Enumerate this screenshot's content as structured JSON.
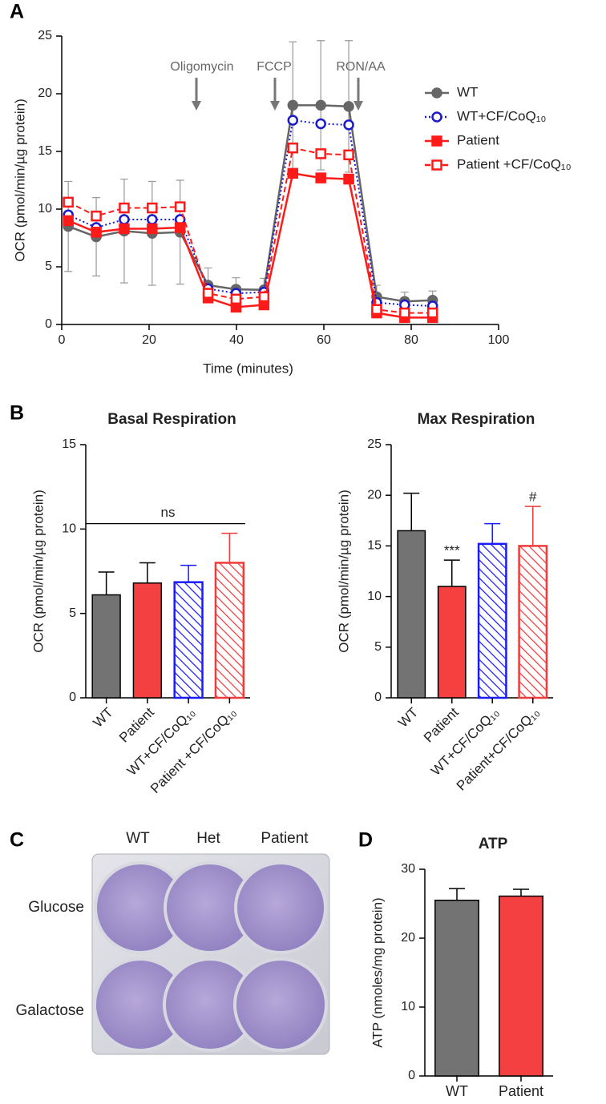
{
  "panel_labels": [
    "A",
    "B",
    "C",
    "D"
  ],
  "chart_data": [
    {
      "type": "line",
      "ylabel": "OCR (pmol/min/µg protein)",
      "xlabel": "Time (minutes)",
      "xlim": [
        0,
        100
      ],
      "xticks": [
        0,
        20,
        40,
        60,
        80,
        100
      ],
      "ylim": [
        0,
        25
      ],
      "yticks": [
        0,
        5,
        10,
        15,
        20,
        25
      ],
      "x": [
        1.5,
        7.9,
        14.3,
        20.7,
        27.1,
        33.5,
        39.9,
        46.3,
        52.9,
        59.3,
        65.7,
        72.1,
        78.5,
        84.9
      ],
      "annotations": [
        "Oligomycin",
        "FCCP",
        "RON/AA"
      ],
      "series": [
        {
          "name": "WT",
          "color": "#666666",
          "marker": "circle",
          "filled": true,
          "style": "solid",
          "values": [
            8.5,
            7.6,
            8.1,
            7.9,
            8.0,
            3.4,
            3.05,
            3.0,
            19.0,
            19.0,
            18.9,
            2.4,
            2.0,
            2.1
          ],
          "errors": [
            3.9,
            3.4,
            4.5,
            4.5,
            4.5,
            1.5,
            1.0,
            1.0,
            5.5,
            5.6,
            5.7,
            1.0,
            0.8,
            0.8
          ]
        },
        {
          "name": "WT+CF/CoQ₁₀",
          "color": "#1a1acc",
          "marker": "circle",
          "filled": false,
          "style": "dotted",
          "values": [
            9.5,
            8.4,
            9.1,
            9.1,
            9.1,
            3.1,
            2.7,
            2.8,
            17.7,
            17.4,
            17.3,
            1.9,
            1.7,
            1.6
          ]
        },
        {
          "name": "Patient",
          "color": "#ff1a1a",
          "marker": "square",
          "filled": true,
          "style": "solid",
          "values": [
            9.0,
            8.0,
            8.3,
            8.3,
            8.4,
            2.3,
            1.5,
            1.7,
            13.1,
            12.7,
            12.6,
            1.0,
            0.6,
            0.6
          ]
        },
        {
          "name": "Patient +CF/CoQ₁₀",
          "color": "#ff1a1a",
          "marker": "square",
          "filled": false,
          "style": "dashed",
          "values": [
            10.6,
            9.4,
            10.1,
            10.1,
            10.2,
            2.7,
            2.2,
            2.4,
            15.3,
            14.8,
            14.7,
            1.3,
            1.0,
            1.0
          ]
        }
      ]
    },
    {
      "type": "bar",
      "title": "Basal Respiration",
      "ylabel": "OCR (pmol/min/µg protein)",
      "categories": [
        "WT",
        "Patient",
        "WT+CF/CoQ₁₀",
        "Patient +CF/CoQ₁₀"
      ],
      "values": [
        6.1,
        6.8,
        6.85,
        8.0
      ],
      "errors": [
        1.35,
        1.2,
        1.0,
        1.75
      ],
      "colors": [
        "#737373",
        "#f44040",
        "#1a1aff",
        "#ef3b3b"
      ],
      "hatched": [
        false,
        false,
        true,
        true
      ],
      "ylim": [
        0,
        15
      ],
      "yticks": [
        0,
        5,
        10,
        15
      ],
      "annotations": [
        {
          "text": "ns"
        }
      ]
    },
    {
      "type": "bar",
      "title": "Max Respiration",
      "ylabel": "OCR (pmol/min/µg protein)",
      "categories": [
        "WT",
        "Patient",
        "WT+CF/CoQ₁₀",
        "Patient+CF/CoQ₁₀"
      ],
      "values": [
        16.5,
        11.0,
        15.2,
        15.0
      ],
      "errors": [
        3.7,
        2.6,
        2.0,
        3.9
      ],
      "colors": [
        "#737373",
        "#f44040",
        "#1a1aff",
        "#ef3b3b"
      ],
      "hatched": [
        false,
        false,
        true,
        true
      ],
      "ylim": [
        0,
        25
      ],
      "yticks": [
        0,
        5,
        10,
        15,
        20,
        25
      ],
      "annotations": [
        {
          "text": "***",
          "category": "Patient"
        },
        {
          "text": "#",
          "category": "Patient+CF/CoQ₁₀"
        }
      ]
    },
    {
      "type": "bar",
      "title": "ATP",
      "ylabel": "ATP (nmoles/mg protein)",
      "categories": [
        "WT",
        "Patient"
      ],
      "values": [
        25.5,
        26.1
      ],
      "errors": [
        1.7,
        1.0
      ],
      "colors": [
        "#737373",
        "#f44040"
      ],
      "hatched": [
        false,
        false
      ],
      "ylim": [
        0,
        30
      ],
      "yticks": [
        0,
        10,
        20,
        30
      ]
    }
  ],
  "panel_c": {
    "columns": [
      "WT",
      "Het",
      "Patient"
    ],
    "rows": [
      "Glucose",
      "Galactose"
    ]
  }
}
